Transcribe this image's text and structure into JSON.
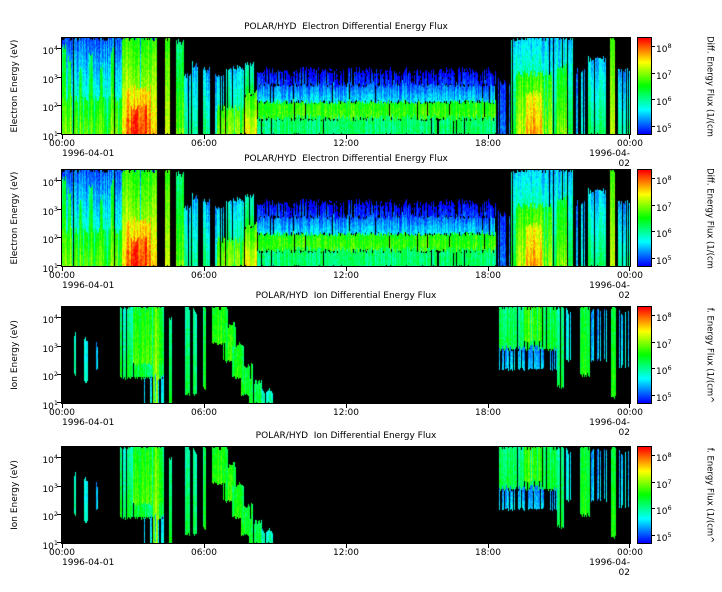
{
  "chart_data": {
    "type": "heatmap",
    "x_range_hours": [
      0,
      24
    ],
    "x_tick_labels": [
      "00:00",
      "06:00",
      "12:00",
      "18:00",
      "00:00"
    ],
    "date_start": "1996-04-01",
    "date_end": "1996-04-02",
    "y_scale": "log",
    "y_tick_base": "10",
    "y_tick_exponents": [
      "4",
      "3",
      "2",
      "1"
    ],
    "y_range_log10_eV": [
      1.0,
      4.35
    ],
    "colorbar_tick_base": "10",
    "colorbar_tick_exponents": [
      "8",
      "7",
      "6",
      "5"
    ],
    "color_range_log10": [
      4.7,
      8.3
    ],
    "colormap": "rainbow-on-black",
    "background_color": "#000000",
    "panels": [
      {
        "title": "POLAR/HYD  Electron Differential Energy Flux",
        "ylabel": "Electron Energy (eV)",
        "colorbar_label": "Diff. Energy Flux (1/(cm",
        "features": "electron"
      },
      {
        "title": "POLAR/HYD  Electron Differential Energy Flux",
        "ylabel": "Electron Energy (eV)",
        "colorbar_label": "Diff. Energy Flux (1/(cm",
        "features": "electron"
      },
      {
        "title": "POLAR/HYD  Ion Differential Energy Flux",
        "ylabel": "Ion Energy (eV)",
        "colorbar_label": "f. Energy Flux (1/(cm^",
        "features": "ion"
      },
      {
        "title": "POLAR/HYD  Ion Differential Energy Flux",
        "ylabel": "Ion Energy (eV)",
        "colorbar_label": "f. Energy Flux (1/(cm^",
        "features": "ion"
      }
    ],
    "feature_format": "t=[startHour,endHour], e=[log10 eV lo,hi], f=peak log10 flux, grad=flux falloff toward high energy, gap=fraction of black dropout columns",
    "feature_sets": {
      "electron": [
        {
          "t": [
            0.0,
            4.0
          ],
          "e": [
            1.0,
            4.35
          ],
          "f": 6.2,
          "grad": 1.2,
          "gap": 0.15
        },
        {
          "t": [
            0.0,
            2.6
          ],
          "e": [
            1.0,
            2.2
          ],
          "f": 6.8,
          "grad": 0.4,
          "gap": 0.3
        },
        {
          "t": [
            0.02,
            0.15
          ],
          "e": [
            1.0,
            4.0
          ],
          "f": 7.0,
          "grad": 0.7,
          "gap": 0
        },
        {
          "t": [
            0.25,
            0.4
          ],
          "e": [
            1.0,
            3.6
          ],
          "f": 7.0,
          "grad": 0.8,
          "gap": 0
        },
        {
          "t": [
            0.7,
            0.85
          ],
          "e": [
            1.0,
            3.2
          ],
          "f": 6.9,
          "grad": 0.7,
          "gap": 0
        },
        {
          "t": [
            1.15,
            1.3
          ],
          "e": [
            1.0,
            3.8
          ],
          "f": 7.0,
          "grad": 0.8,
          "gap": 0
        },
        {
          "t": [
            1.6,
            1.75
          ],
          "e": [
            1.0,
            3.4
          ],
          "f": 6.9,
          "grad": 0.7,
          "gap": 0
        },
        {
          "t": [
            2.05,
            2.2
          ],
          "e": [
            1.0,
            3.9
          ],
          "f": 7.1,
          "grad": 0.8,
          "gap": 0
        },
        {
          "t": [
            2.55,
            4.0
          ],
          "e": [
            1.0,
            4.35
          ],
          "f": 7.5,
          "grad": 0.9,
          "gap": 0.05
        },
        {
          "t": [
            2.7,
            3.75
          ],
          "e": [
            1.0,
            2.6
          ],
          "f": 7.9,
          "grad": 0.5,
          "gap": 0
        },
        {
          "t": [
            2.9,
            3.6
          ],
          "e": [
            1.0,
            1.9
          ],
          "f": 8.15,
          "grad": 0.2,
          "gap": 0
        },
        {
          "t": [
            4.35,
            4.55
          ],
          "e": [
            1.0,
            4.35
          ],
          "f": 7.3,
          "grad": 0.6,
          "gap": 0
        },
        {
          "t": [
            4.8,
            5.15
          ],
          "e": [
            1.0,
            4.2
          ],
          "f": 6.9,
          "grad": 0.8,
          "gap": 0.1
        },
        {
          "t": [
            5.15,
            5.45
          ],
          "e": [
            1.0,
            3.0
          ],
          "f": 6.0,
          "grad": 0.6,
          "gap": 0.3
        },
        {
          "t": [
            5.5,
            5.75
          ],
          "e": [
            1.0,
            3.4
          ],
          "f": 6.0,
          "grad": 0.7,
          "gap": 0.1
        },
        {
          "t": [
            5.9,
            6.25
          ],
          "e": [
            1.0,
            3.2
          ],
          "f": 6.1,
          "grad": 0.8,
          "gap": 0.1
        },
        {
          "t": [
            6.45,
            6.85
          ],
          "e": [
            1.0,
            3.0
          ],
          "f": 6.0,
          "grad": 0.7,
          "gap": 0.1
        },
        {
          "t": [
            6.95,
            7.7
          ],
          "e": [
            1.0,
            3.3
          ],
          "f": 6.3,
          "grad": 0.8,
          "gap": 0.1
        },
        {
          "t": [
            6.5,
            7.7
          ],
          "e": [
            1.0,
            1.9
          ],
          "f": 7.0,
          "grad": 0.3,
          "gap": 0.15
        },
        {
          "t": [
            7.75,
            8.25
          ],
          "e": [
            1.0,
            2.4
          ],
          "f": 7.4,
          "grad": 0.8,
          "gap": 0
        },
        {
          "t": [
            7.75,
            8.1
          ],
          "e": [
            2.4,
            3.4
          ],
          "f": 6.3,
          "grad": 0.6,
          "gap": 0.1
        },
        {
          "t": [
            8.25,
            18.35
          ],
          "e": [
            1.55,
            2.15
          ],
          "f": 6.7,
          "grad": 0.2,
          "gap": 0.02
        },
        {
          "t": [
            8.25,
            18.35
          ],
          "e": [
            1.0,
            1.55
          ],
          "f": 6.1,
          "grad": 0.0,
          "gap": 0.05
        },
        {
          "t": [
            8.25,
            18.35
          ],
          "e": [
            2.15,
            2.75
          ],
          "f": 5.5,
          "grad": 0.5,
          "gap": 0.05
        },
        {
          "t": [
            8.25,
            18.35
          ],
          "e": [
            2.75,
            3.2
          ],
          "f": 4.9,
          "grad": 0.3,
          "gap": 0.2
        },
        {
          "t": [
            18.35,
            18.95
          ],
          "e": [
            1.0,
            2.8
          ],
          "f": 5.1,
          "grad": 0.3,
          "gap": 0.5
        },
        {
          "t": [
            18.95,
            21.6
          ],
          "e": [
            1.0,
            4.35
          ],
          "f": 6.4,
          "grad": 1.0,
          "gap": 0.08
        },
        {
          "t": [
            19.2,
            20.7
          ],
          "e": [
            1.0,
            3.1
          ],
          "f": 7.2,
          "grad": 0.6,
          "gap": 0.1
        },
        {
          "t": [
            19.6,
            20.3
          ],
          "e": [
            1.0,
            2.4
          ],
          "f": 7.7,
          "grad": 0.4,
          "gap": 0
        },
        {
          "t": [
            20.9,
            21.35
          ],
          "e": [
            1.0,
            3.3
          ],
          "f": 7.0,
          "grad": 0.6,
          "gap": 0
        },
        {
          "t": [
            21.7,
            22.15
          ],
          "e": [
            1.0,
            3.2
          ],
          "f": 5.6,
          "grad": 0.4,
          "gap": 0.4
        },
        {
          "t": [
            22.2,
            23.0
          ],
          "e": [
            1.0,
            3.6
          ],
          "f": 6.2,
          "grad": 0.8,
          "gap": 0.2
        },
        {
          "t": [
            23.15,
            23.35
          ],
          "e": [
            1.0,
            4.35
          ],
          "f": 7.2,
          "grad": 0.5,
          "gap": 0
        },
        {
          "t": [
            23.45,
            24.0
          ],
          "e": [
            1.0,
            3.2
          ],
          "f": 5.9,
          "grad": 0.7,
          "gap": 0.25
        }
      ],
      "ion": [
        {
          "t": [
            0.45,
            0.6
          ],
          "e": [
            2.0,
            3.4
          ],
          "f": 5.8,
          "grad": 0.2,
          "gap": 0.1
        },
        {
          "t": [
            0.95,
            1.1
          ],
          "e": [
            1.8,
            3.2
          ],
          "f": 5.7,
          "grad": 0.2,
          "gap": 0.1
        },
        {
          "t": [
            1.45,
            1.58
          ],
          "e": [
            2.2,
            3.0
          ],
          "f": 5.5,
          "grad": 0.2,
          "gap": 0.1
        },
        {
          "t": [
            2.45,
            4.3
          ],
          "e": [
            1.9,
            4.35
          ],
          "f": 6.3,
          "grad": 0.5,
          "gap": 0.08
        },
        {
          "t": [
            3.0,
            4.25
          ],
          "e": [
            2.4,
            4.35
          ],
          "f": 6.7,
          "grad": 0.3,
          "gap": 0.05
        },
        {
          "t": [
            3.85,
            4.1
          ],
          "e": [
            1.0,
            4.35
          ],
          "f": 7.0,
          "grad": 0.3,
          "gap": 0
        },
        {
          "t": [
            3.4,
            4.3
          ],
          "e": [
            1.0,
            1.9
          ],
          "f": 5.6,
          "grad": 0.2,
          "gap": 0.3
        },
        {
          "t": [
            4.5,
            4.65
          ],
          "e": [
            1.0,
            4.0
          ],
          "f": 6.4,
          "grad": 0.5,
          "gap": 0
        },
        {
          "t": [
            5.2,
            5.4
          ],
          "e": [
            1.3,
            4.35
          ],
          "f": 6.3,
          "grad": 0.4,
          "gap": 0.05
        },
        {
          "t": [
            5.55,
            5.7
          ],
          "e": [
            1.3,
            4.2
          ],
          "f": 6.2,
          "grad": 0.4,
          "gap": 0.05
        },
        {
          "t": [
            5.95,
            6.1
          ],
          "e": [
            1.5,
            4.35
          ],
          "f": 6.4,
          "grad": 0.3,
          "gap": 0.05
        },
        {
          "t": [
            6.35,
            7.0
          ],
          "e": [
            3.1,
            4.35
          ],
          "f": 6.6,
          "grad": 0.2,
          "gap": 0.05
        },
        {
          "t": [
            6.8,
            7.35
          ],
          "e": [
            2.5,
            3.7
          ],
          "f": 6.6,
          "grad": 0.2,
          "gap": 0.05
        },
        {
          "t": [
            7.2,
            7.7
          ],
          "e": [
            1.9,
            3.0
          ],
          "f": 6.5,
          "grad": 0.2,
          "gap": 0.05
        },
        {
          "t": [
            7.55,
            8.05
          ],
          "e": [
            1.3,
            2.3
          ],
          "f": 6.5,
          "grad": 0.2,
          "gap": 0.05
        },
        {
          "t": [
            7.9,
            8.45
          ],
          "e": [
            1.0,
            1.7
          ],
          "f": 6.4,
          "grad": 0.2,
          "gap": 0.05
        },
        {
          "t": [
            8.45,
            8.9
          ],
          "e": [
            1.0,
            1.4
          ],
          "f": 5.9,
          "grad": 0.2,
          "gap": 0.2
        },
        {
          "t": [
            18.45,
            20.9
          ],
          "e": [
            2.9,
            4.35
          ],
          "f": 6.3,
          "grad": 0.2,
          "gap": 0.15
        },
        {
          "t": [
            18.45,
            20.9
          ],
          "e": [
            2.2,
            2.9
          ],
          "f": 5.5,
          "grad": 0.3,
          "gap": 0.3
        },
        {
          "t": [
            19.5,
            20.3
          ],
          "e": [
            3.2,
            4.35
          ],
          "f": 6.7,
          "grad": 0.1,
          "gap": 0.1
        },
        {
          "t": [
            20.9,
            21.2
          ],
          "e": [
            1.6,
            4.35
          ],
          "f": 6.2,
          "grad": 0.3,
          "gap": 0.05
        },
        {
          "t": [
            21.3,
            21.55
          ],
          "e": [
            2.5,
            4.2
          ],
          "f": 5.6,
          "grad": 0.2,
          "gap": 0.3
        },
        {
          "t": [
            21.9,
            22.3
          ],
          "e": [
            2.0,
            4.35
          ],
          "f": 6.5,
          "grad": 0.2,
          "gap": 0.05
        },
        {
          "t": [
            22.35,
            23.05
          ],
          "e": [
            2.5,
            4.2
          ],
          "f": 5.4,
          "grad": 0.2,
          "gap": 0.35
        },
        {
          "t": [
            23.2,
            23.4
          ],
          "e": [
            1.2,
            4.35
          ],
          "f": 6.6,
          "grad": 0.3,
          "gap": 0
        },
        {
          "t": [
            23.5,
            23.95
          ],
          "e": [
            2.3,
            4.1
          ],
          "f": 5.5,
          "grad": 0.2,
          "gap": 0.4
        }
      ]
    }
  }
}
